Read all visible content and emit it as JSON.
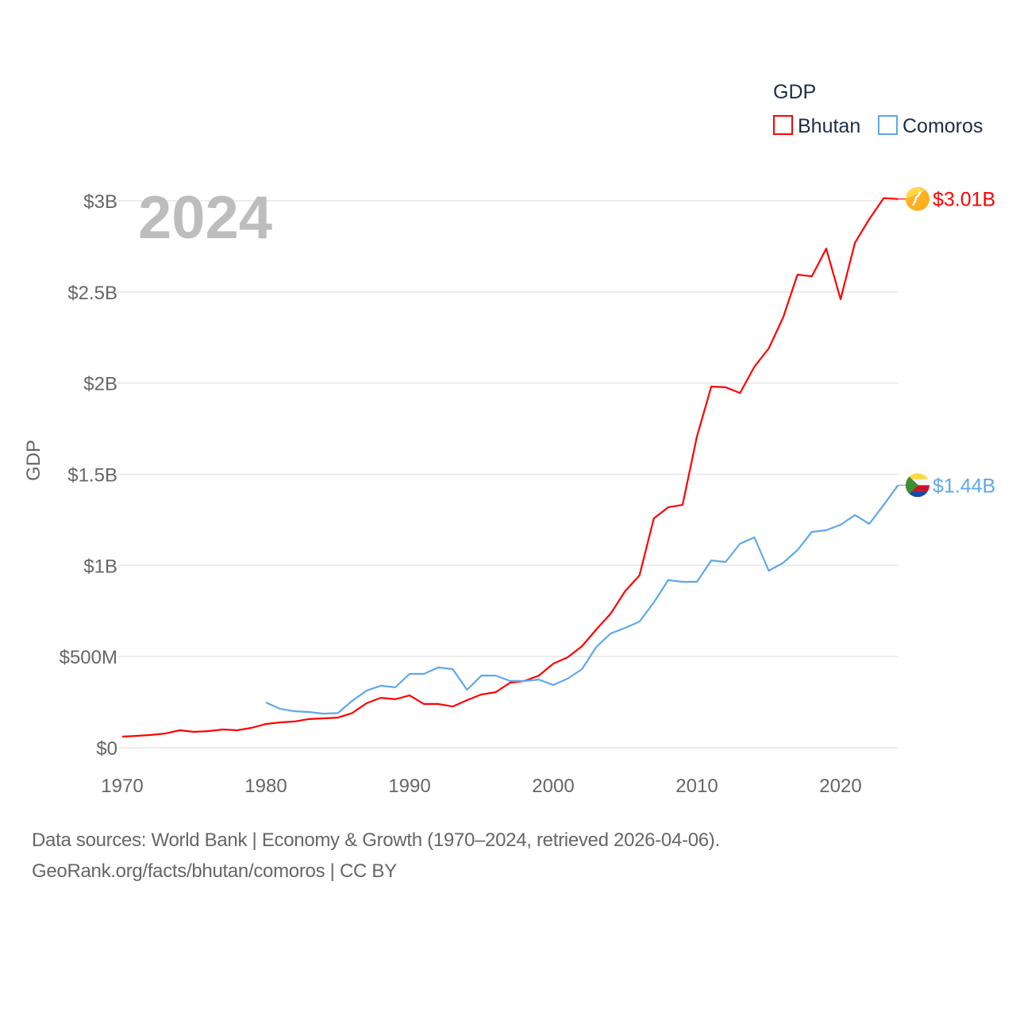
{
  "chart_data": {
    "type": "line",
    "ylabel": "GDP",
    "xlabel": "",
    "year_label": "2024",
    "legend": {
      "title": "GDP",
      "placement": "top-right"
    },
    "xlim": [
      1970,
      2024
    ],
    "ylim": [
      0,
      3000000000
    ],
    "x_ticks": [
      1970,
      1980,
      1990,
      2000,
      2010,
      2020
    ],
    "x_tick_labels": [
      "1970",
      "1980",
      "1990",
      "2000",
      "2010",
      "2020"
    ],
    "y_ticks": [
      0,
      500000000,
      1000000000,
      1500000000,
      2000000000,
      2500000000,
      3000000000
    ],
    "y_tick_labels": [
      "$0",
      "$500M",
      "$1B",
      "$1.5B",
      "$2B",
      "$2.5B",
      "$3B"
    ],
    "grid": true,
    "series": [
      {
        "name": "Bhutan",
        "color": "#ff0000",
        "end_label": "$3.01B",
        "flag": "bhutan-flag",
        "start_year": 1970,
        "values_billion": [
          0.061,
          0.065,
          0.07,
          0.078,
          0.096,
          0.087,
          0.091,
          0.1,
          0.096,
          0.109,
          0.13,
          0.139,
          0.144,
          0.157,
          0.161,
          0.165,
          0.19,
          0.244,
          0.274,
          0.266,
          0.287,
          0.24,
          0.24,
          0.226,
          0.261,
          0.292,
          0.305,
          0.357,
          0.366,
          0.396,
          0.461,
          0.496,
          0.557,
          0.649,
          0.736,
          0.858,
          0.945,
          1.258,
          1.319,
          1.332,
          1.707,
          1.981,
          1.977,
          1.946,
          2.09,
          2.19,
          2.36,
          2.595,
          2.586,
          2.738,
          2.46,
          2.77,
          2.9,
          3.015,
          3.01
        ]
      },
      {
        "name": "Comoros",
        "color": "#5ea8ea",
        "end_label": "$1.44B",
        "flag": "comoros-flag",
        "start_year": 1980,
        "values_billion": [
          0.248,
          0.213,
          0.2,
          0.196,
          0.187,
          0.19,
          0.257,
          0.313,
          0.34,
          0.331,
          0.405,
          0.405,
          0.44,
          0.431,
          0.318,
          0.396,
          0.396,
          0.366,
          0.366,
          0.374,
          0.344,
          0.379,
          0.431,
          0.553,
          0.627,
          0.657,
          0.692,
          0.797,
          0.919,
          0.91,
          0.91,
          1.027,
          1.019,
          1.119,
          1.154,
          0.971,
          1.014,
          1.084,
          1.184,
          1.193,
          1.223,
          1.276,
          1.228,
          1.332,
          1.44
        ]
      }
    ]
  },
  "footer": {
    "line1": "Data sources: World Bank | Economy & Growth (1970–2024, retrieved 2026-04-06).",
    "line2": "GeoRank.org/facts/bhutan/comoros | CC BY"
  }
}
